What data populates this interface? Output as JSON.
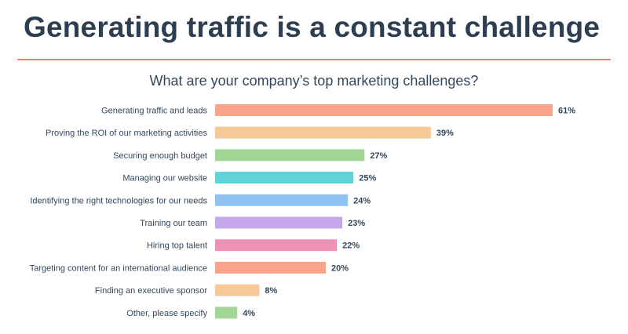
{
  "slide": {
    "title": "Generating traffic is a constant challenge",
    "divider_color": "#f07f6a"
  },
  "chart_data": {
    "type": "bar",
    "orientation": "horizontal",
    "title": "What are your company’s top marketing challenges?",
    "categories": [
      "Generating traffic and leads",
      "Proving the ROI of our marketing activities",
      "Securing enough budget",
      "Managing our website",
      "Identifying the right technologies for our needs",
      "Training our team",
      "Hiring top talent",
      "Targeting content for an international audience",
      "Finding an executive sponsor",
      "Other, please specify"
    ],
    "values": [
      61,
      39,
      27,
      25,
      24,
      23,
      22,
      20,
      8,
      4
    ],
    "value_suffix": "%",
    "colors": [
      "#f9a38b",
      "#f6c997",
      "#a2d694",
      "#5fd3d8",
      "#8fc3f3",
      "#c5a8ea",
      "#ec92b6",
      "#f9a38b",
      "#f6c997",
      "#a2d694"
    ],
    "xlim": [
      0,
      61
    ],
    "grid": false,
    "legend": "none"
  }
}
